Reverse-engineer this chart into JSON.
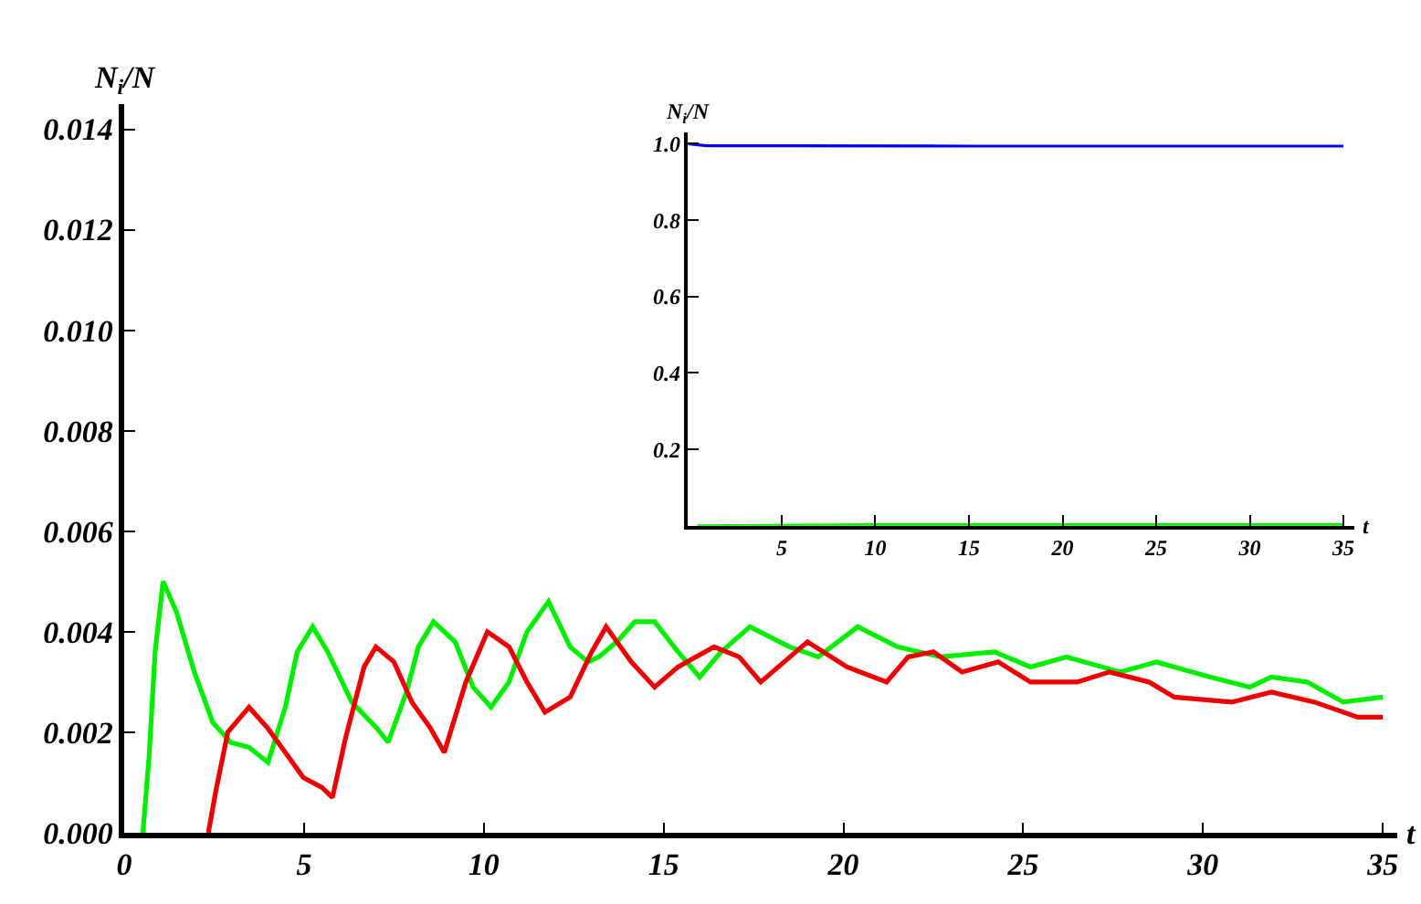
{
  "chart_data": [
    {
      "type": "line",
      "xlabel": "t",
      "ylabel": "N$_{i}$/N",
      "xlim": [
        0,
        35.4
      ],
      "ylim": [
        0,
        0.0145
      ],
      "xticks": [
        0,
        5,
        10,
        15,
        20,
        25,
        30,
        35
      ],
      "yticks": [
        {
          "value": 0,
          "label": "0.000"
        },
        {
          "value": 0.002,
          "label": "0.002"
        },
        {
          "value": 0.004,
          "label": "0.004"
        },
        {
          "value": 0.006,
          "label": "0.006"
        },
        {
          "value": 0.008,
          "label": "0.008"
        },
        {
          "value": 0.01,
          "label": "0.010"
        },
        {
          "value": 0.012,
          "label": "0.012"
        },
        {
          "value": 0.014,
          "label": "0.014"
        }
      ],
      "legend": false,
      "marker": "none",
      "line_style": "solid",
      "series": [
        {
          "color": "#00ee00",
          "x": [
            0.52,
            0.69,
            0.86,
            1.08,
            1.45,
            1.95,
            2.46,
            2.96,
            3.47,
            4.0,
            4.48,
            4.81,
            5.24,
            5.66,
            6.33,
            7.0,
            7.34,
            7.85,
            8.18,
            8.6,
            9.2,
            9.7,
            10.2,
            10.7,
            11.2,
            11.8,
            12.4,
            12.9,
            13.2,
            13.7,
            14.2,
            14.75,
            15.4,
            16.0,
            16.6,
            17.4,
            18.5,
            19.3,
            20.4,
            21.5,
            22.7,
            24.2,
            25.2,
            26.2,
            27.7,
            28.7,
            30.2,
            31.3,
            31.9,
            32.9,
            33.9,
            35.0
          ],
          "values": [
            0.0,
            0.0015,
            0.0036,
            0.005,
            0.0044,
            0.0032,
            0.0022,
            0.0018,
            0.0017,
            0.0014,
            0.0025,
            0.0036,
            0.0041,
            0.0036,
            0.0026,
            0.0021,
            0.0018,
            0.0028,
            0.0037,
            0.0042,
            0.0038,
            0.0029,
            0.0025,
            0.003,
            0.004,
            0.0046,
            0.0037,
            0.0034,
            0.0035,
            0.0038,
            0.0042,
            0.0042,
            0.0036,
            0.0031,
            0.0036,
            0.0041,
            0.0037,
            0.0035,
            0.0041,
            0.0037,
            0.0035,
            0.0036,
            0.0033,
            0.0035,
            0.0032,
            0.0034,
            0.0031,
            0.0029,
            0.0031,
            0.003,
            0.0026,
            0.0027
          ]
        },
        {
          "color": "#ee0000",
          "x": [
            2.34,
            2.54,
            2.88,
            3.47,
            3.97,
            4.48,
            4.98,
            5.5,
            5.79,
            6.16,
            6.67,
            7.0,
            7.5,
            8.0,
            8.5,
            8.9,
            9.5,
            10.1,
            10.7,
            11.2,
            11.7,
            12.4,
            13.0,
            13.4,
            14.1,
            14.75,
            15.4,
            16.4,
            17.1,
            17.7,
            19.0,
            20.1,
            21.2,
            21.8,
            22.5,
            23.3,
            24.3,
            25.2,
            26.5,
            27.4,
            28.5,
            29.2,
            30.8,
            31.9,
            33.1,
            34.3,
            35.0
          ],
          "values": [
            0.0,
            0.0008,
            0.002,
            0.0025,
            0.0021,
            0.0016,
            0.0011,
            0.0009,
            0.0007,
            0.0019,
            0.0033,
            0.0037,
            0.0034,
            0.0026,
            0.0021,
            0.0016,
            0.003,
            0.004,
            0.0037,
            0.003,
            0.0024,
            0.0027,
            0.0036,
            0.0041,
            0.0034,
            0.0029,
            0.0033,
            0.0037,
            0.0035,
            0.003,
            0.0038,
            0.0033,
            0.003,
            0.0035,
            0.0036,
            0.0032,
            0.0034,
            0.003,
            0.003,
            0.0032,
            0.003,
            0.0027,
            0.0026,
            0.0028,
            0.0026,
            0.0023,
            0.0023
          ]
        }
      ]
    },
    {
      "type": "line",
      "xlabel": "t",
      "ylabel": "N$_{i}$/N",
      "xlim": [
        0,
        35.6
      ],
      "ylim": [
        0,
        1.03
      ],
      "xticks": [
        5,
        10,
        15,
        20,
        25,
        30,
        35
      ],
      "yticks": [
        0.2,
        0.4,
        0.6,
        0.8,
        {
          "value": 1.0,
          "label": "1.0"
        }
      ],
      "legend": false,
      "marker": "none",
      "line_style": "solid",
      "series": [
        {
          "color": "#0000ee",
          "x": [
            0,
            1,
            5,
            15,
            35
          ],
          "values": [
            1.0,
            0.995,
            0.995,
            0.994,
            0.994
          ]
        },
        {
          "color": "#00ee00",
          "x": [
            0.5,
            10,
            35
          ],
          "values": [
            0.0,
            0.003,
            0.003
          ]
        }
      ]
    }
  ]
}
